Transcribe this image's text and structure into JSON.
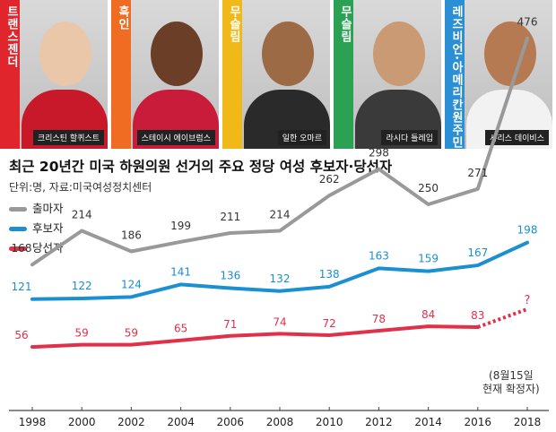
{
  "photos": [
    {
      "label": "트랜스젠더",
      "name": "크리스틴 할퀴스트",
      "color": "#e0262c",
      "skin": "#e9c7a8",
      "shirt": "#c8192a"
    },
    {
      "label": "흑인",
      "name": "스테이시 에이브럼스",
      "color": "#ef6c22",
      "skin": "#6b3f27",
      "shirt": "#c81c3a"
    },
    {
      "label": "무슬림",
      "name": "일한 오마르",
      "color": "#f1b81a",
      "skin": "#9c6a45",
      "shirt": "#2a2a2a"
    },
    {
      "label": "무슬림",
      "name": "라시다 틀레입",
      "color": "#2aa153",
      "skin": "#c99a73",
      "shirt": "#3a3a3a"
    },
    {
      "label": "레즈비언·아메리칸원주민",
      "name": "샤리스 데이비스",
      "color": "#2b8fd6",
      "skin": "#b57a52",
      "shirt": "#f2f2f2"
    }
  ],
  "title": "최근 20년간 미국 하원의원 선거의 주요 정당 여성 후보자·당선자",
  "subtitle": "단위:명, 자료:미국여성정치센터",
  "note": {
    "line1": "(8월15일",
    "line2": "현재 확정자)"
  },
  "chart_data": {
    "type": "line",
    "x": [
      "1998",
      "2000",
      "2002",
      "2004",
      "2006",
      "2008",
      "2010",
      "2012",
      "2014",
      "2016",
      "2018"
    ],
    "ylim": [
      0,
      500
    ],
    "grid": false,
    "legend_position": "top-left",
    "series": [
      {
        "name": "출마자",
        "color": "#999999",
        "values": [
          168,
          214,
          186,
          199,
          211,
          214,
          262,
          298,
          250,
          271,
          476
        ]
      },
      {
        "name": "후보자",
        "color": "#1a8fd1",
        "values": [
          121,
          122,
          124,
          141,
          136,
          132,
          138,
          163,
          159,
          167,
          198
        ]
      },
      {
        "name": "당선자",
        "color": "#e0304a",
        "values": [
          56,
          59,
          59,
          65,
          71,
          74,
          72,
          78,
          84,
          83,
          null
        ],
        "pending_label": "?"
      }
    ]
  }
}
